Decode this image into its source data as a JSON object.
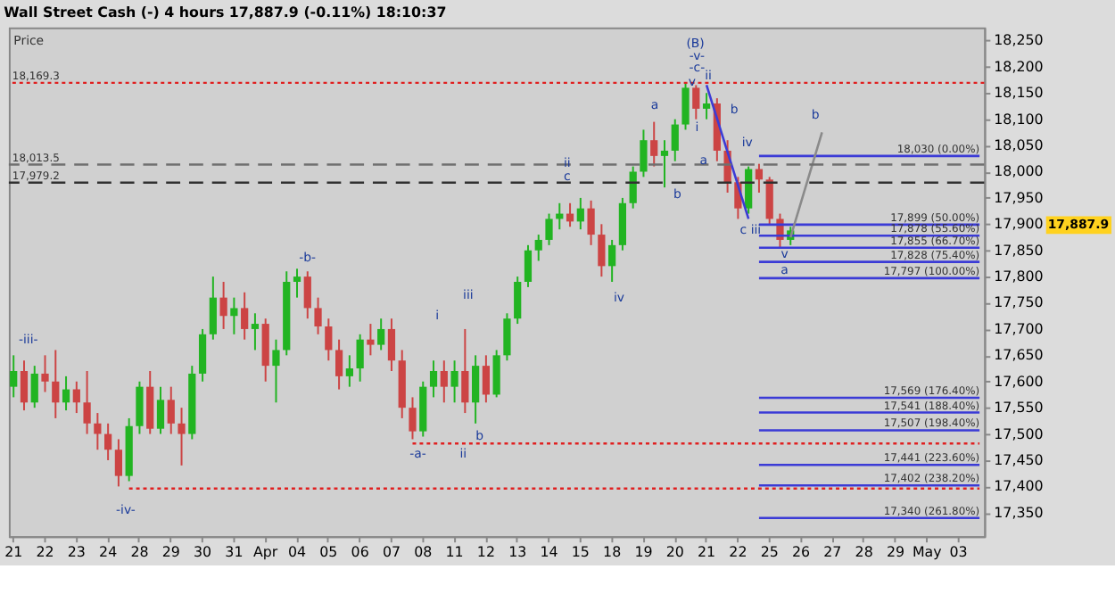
{
  "chart_data": {
    "type": "candlestick",
    "title": "Wall Street Cash (-)   4 hours   17,887.9 (-0.11%)   18:10:37",
    "categories": [
      "21",
      null,
      null,
      "22",
      null,
      null,
      "23",
      null,
      null,
      "24",
      null,
      null,
      "28",
      null,
      null,
      "29",
      null,
      null,
      "30",
      null,
      null,
      "31",
      null,
      null,
      "Apr",
      null,
      null,
      "04",
      null,
      null,
      "05",
      null,
      null,
      "06",
      null,
      null,
      "07",
      null,
      null,
      "08",
      null,
      null,
      "11",
      null,
      null,
      "12",
      null,
      null,
      "13",
      null,
      null,
      "14",
      null,
      null,
      "15",
      null,
      null,
      "18",
      null,
      null,
      "19",
      null,
      null,
      "20",
      null,
      null,
      "21",
      null,
      null,
      "22",
      null,
      null,
      "25",
      null,
      null,
      "26",
      null,
      null,
      "27",
      null,
      null,
      "28",
      null,
      null,
      "29",
      null,
      null,
      "May",
      null,
      null,
      "03",
      null,
      null
    ],
    "ohlc": [
      [
        17590,
        17650,
        17570,
        17620
      ],
      [
        17620,
        17640,
        17545,
        17560
      ],
      [
        17560,
        17630,
        17550,
        17615
      ],
      [
        17615,
        17650,
        17580,
        17600
      ],
      [
        17600,
        17660,
        17530,
        17560
      ],
      [
        17560,
        17610,
        17545,
        17585
      ],
      [
        17585,
        17600,
        17540,
        17560
      ],
      [
        17560,
        17620,
        17500,
        17520
      ],
      [
        17520,
        17540,
        17470,
        17500
      ],
      [
        17500,
        17520,
        17450,
        17470
      ],
      [
        17470,
        17490,
        17400,
        17420
      ],
      [
        17420,
        17530,
        17410,
        17515
      ],
      [
        17515,
        17600,
        17500,
        17590
      ],
      [
        17590,
        17620,
        17500,
        17510
      ],
      [
        17510,
        17590,
        17500,
        17565
      ],
      [
        17565,
        17590,
        17500,
        17520
      ],
      [
        17520,
        17550,
        17440,
        17500
      ],
      [
        17500,
        17630,
        17490,
        17615
      ],
      [
        17615,
        17700,
        17600,
        17690
      ],
      [
        17690,
        17800,
        17680,
        17760
      ],
      [
        17760,
        17790,
        17700,
        17725
      ],
      [
        17725,
        17760,
        17690,
        17740
      ],
      [
        17740,
        17770,
        17680,
        17700
      ],
      [
        17700,
        17730,
        17660,
        17710
      ],
      [
        17710,
        17720,
        17600,
        17630
      ],
      [
        17630,
        17680,
        17560,
        17660
      ],
      [
        17660,
        17810,
        17650,
        17790
      ],
      [
        17790,
        17815,
        17760,
        17800
      ],
      [
        17800,
        17810,
        17720,
        17740
      ],
      [
        17740,
        17760,
        17690,
        17705
      ],
      [
        17705,
        17720,
        17640,
        17660
      ],
      [
        17660,
        17680,
        17585,
        17610
      ],
      [
        17610,
        17650,
        17590,
        17625
      ],
      [
        17625,
        17690,
        17600,
        17680
      ],
      [
        17680,
        17710,
        17650,
        17670
      ],
      [
        17670,
        17720,
        17660,
        17700
      ],
      [
        17700,
        17720,
        17620,
        17640
      ],
      [
        17640,
        17660,
        17530,
        17550
      ],
      [
        17550,
        17570,
        17490,
        17505
      ],
      [
        17505,
        17600,
        17495,
        17590
      ],
      [
        17590,
        17640,
        17570,
        17620
      ],
      [
        17620,
        17640,
        17560,
        17590
      ],
      [
        17590,
        17640,
        17560,
        17620
      ],
      [
        17620,
        17700,
        17540,
        17560
      ],
      [
        17560,
        17650,
        17520,
        17630
      ],
      [
        17630,
        17650,
        17560,
        17575
      ],
      [
        17575,
        17660,
        17570,
        17650
      ],
      [
        17650,
        17730,
        17640,
        17720
      ],
      [
        17720,
        17800,
        17710,
        17790
      ],
      [
        17790,
        17860,
        17780,
        17850
      ],
      [
        17850,
        17880,
        17830,
        17870
      ],
      [
        17870,
        17920,
        17860,
        17910
      ],
      [
        17910,
        17940,
        17890,
        17920
      ],
      [
        17920,
        17940,
        17895,
        17905
      ],
      [
        17905,
        17950,
        17890,
        17930
      ],
      [
        17930,
        17945,
        17860,
        17880
      ],
      [
        17880,
        17900,
        17800,
        17820
      ],
      [
        17820,
        17870,
        17790,
        17860
      ],
      [
        17860,
        17950,
        17850,
        17940
      ],
      [
        17940,
        18010,
        17930,
        18000
      ],
      [
        18000,
        18080,
        17990,
        18060
      ],
      [
        18060,
        18095,
        18010,
        18030
      ],
      [
        18030,
        18060,
        17970,
        18040
      ],
      [
        18040,
        18100,
        18020,
        18090
      ],
      [
        18090,
        18170,
        18080,
        18160
      ],
      [
        18160,
        18165,
        18100,
        18120
      ],
      [
        18120,
        18150,
        18100,
        18130
      ],
      [
        18130,
        18140,
        18020,
        18040
      ],
      [
        18040,
        18060,
        17960,
        17980
      ],
      [
        17980,
        17990,
        17910,
        17930
      ],
      [
        17930,
        18010,
        17920,
        18005
      ],
      [
        18005,
        18015,
        17960,
        17985
      ],
      [
        17985,
        17990,
        17900,
        17910
      ],
      [
        17910,
        17920,
        17855,
        17870
      ],
      [
        17870,
        17895,
        17860,
        17888
      ],
      null,
      null,
      null,
      null,
      null,
      null,
      null,
      null,
      null,
      null,
      null,
      null,
      null,
      null,
      null,
      null,
      null,
      null
    ],
    "series": [
      {
        "type": "line",
        "name": "18,030 (0.00%)",
        "color": "#3b3bd6",
        "values": [
          null,
          null,
          null,
          null,
          null,
          null,
          null,
          null,
          null,
          null,
          null,
          null,
          null,
          null,
          null,
          null,
          null,
          null,
          null,
          null,
          null,
          null,
          null,
          null,
          null,
          null,
          null,
          null,
          null,
          null,
          null,
          null,
          null,
          null,
          null,
          null,
          null,
          null,
          null,
          null,
          null,
          null,
          null,
          null,
          null,
          null,
          null,
          null,
          null,
          null,
          null,
          null,
          null,
          null,
          null,
          null,
          null,
          null,
          null,
          null,
          null,
          null,
          null,
          null,
          null,
          null,
          null,
          null,
          null,
          null,
          null,
          18030,
          18030,
          18030,
          18030,
          18030,
          18030,
          18030,
          18030,
          18030,
          18030,
          18030,
          18030,
          18030,
          18030,
          18030,
          18030,
          18030,
          18030,
          18030,
          18030,
          18030,
          18030
        ]
      },
      {
        "type": "line",
        "name": "17,899 (50.00%)",
        "color": "#3b3bd6",
        "values": [
          null,
          null,
          null,
          null,
          null,
          null,
          null,
          null,
          null,
          null,
          null,
          null,
          null,
          null,
          null,
          null,
          null,
          null,
          null,
          null,
          null,
          null,
          null,
          null,
          null,
          null,
          null,
          null,
          null,
          null,
          null,
          null,
          null,
          null,
          null,
          null,
          null,
          null,
          null,
          null,
          null,
          null,
          null,
          null,
          null,
          null,
          null,
          null,
          null,
          null,
          null,
          null,
          null,
          null,
          null,
          null,
          null,
          null,
          null,
          null,
          null,
          null,
          null,
          null,
          null,
          null,
          null,
          null,
          null,
          null,
          null,
          17899,
          17899,
          17899,
          17899,
          17899,
          17899,
          17899,
          17899,
          17899,
          17899,
          17899,
          17899,
          17899,
          17899,
          17899,
          17899,
          17899,
          17899,
          17899,
          17899,
          17899,
          17899
        ]
      },
      {
        "type": "line",
        "name": "17,878 (55.60%)",
        "color": "#3b3bd6",
        "values": [
          null,
          null,
          null,
          null,
          null,
          null,
          null,
          null,
          null,
          null,
          null,
          null,
          null,
          null,
          null,
          null,
          null,
          null,
          null,
          null,
          null,
          null,
          null,
          null,
          null,
          null,
          null,
          null,
          null,
          null,
          null,
          null,
          null,
          null,
          null,
          null,
          null,
          null,
          null,
          null,
          null,
          null,
          null,
          null,
          null,
          null,
          null,
          null,
          null,
          null,
          null,
          null,
          null,
          null,
          null,
          null,
          null,
          null,
          null,
          null,
          null,
          null,
          null,
          null,
          null,
          null,
          null,
          null,
          null,
          null,
          null,
          17878,
          17878,
          17878,
          17878,
          17878,
          17878,
          17878,
          17878,
          17878,
          17878,
          17878,
          17878,
          17878,
          17878,
          17878,
          17878,
          17878,
          17878,
          17878,
          17878,
          17878,
          17878
        ]
      },
      {
        "type": "line",
        "name": "17,855 (66.70%)",
        "color": "#3b3bd6",
        "values": [
          null,
          null,
          null,
          null,
          null,
          null,
          null,
          null,
          null,
          null,
          null,
          null,
          null,
          null,
          null,
          null,
          null,
          null,
          null,
          null,
          null,
          null,
          null,
          null,
          null,
          null,
          null,
          null,
          null,
          null,
          null,
          null,
          null,
          null,
          null,
          null,
          null,
          null,
          null,
          null,
          null,
          null,
          null,
          null,
          null,
          null,
          null,
          null,
          null,
          null,
          null,
          null,
          null,
          null,
          null,
          null,
          null,
          null,
          null,
          null,
          null,
          null,
          null,
          null,
          null,
          null,
          null,
          null,
          null,
          null,
          null,
          17855,
          17855,
          17855,
          17855,
          17855,
          17855,
          17855,
          17855,
          17855,
          17855,
          17855,
          17855,
          17855,
          17855,
          17855,
          17855,
          17855,
          17855,
          17855,
          17855,
          17855,
          17855
        ]
      },
      {
        "type": "line",
        "name": "17,828 (75.40%)",
        "color": "#3b3bd6",
        "values": [
          null,
          null,
          null,
          null,
          null,
          null,
          null,
          null,
          null,
          null,
          null,
          null,
          null,
          null,
          null,
          null,
          null,
          null,
          null,
          null,
          null,
          null,
          null,
          null,
          null,
          null,
          null,
          null,
          null,
          null,
          null,
          null,
          null,
          null,
          null,
          null,
          null,
          null,
          null,
          null,
          null,
          null,
          null,
          null,
          null,
          null,
          null,
          null,
          null,
          null,
          null,
          null,
          null,
          null,
          null,
          null,
          null,
          null,
          null,
          null,
          null,
          null,
          null,
          null,
          null,
          null,
          null,
          null,
          null,
          null,
          null,
          17828,
          17828,
          17828,
          17828,
          17828,
          17828,
          17828,
          17828,
          17828,
          17828,
          17828,
          17828,
          17828,
          17828,
          17828,
          17828,
          17828,
          17828,
          17828,
          17828,
          17828,
          17828
        ]
      },
      {
        "type": "line",
        "name": "17,797 (100.00%)",
        "color": "#3b3bd6",
        "values": [
          null,
          null,
          null,
          null,
          null,
          null,
          null,
          null,
          null,
          null,
          null,
          null,
          null,
          null,
          null,
          null,
          null,
          null,
          null,
          null,
          null,
          null,
          null,
          null,
          null,
          null,
          null,
          null,
          null,
          null,
          null,
          null,
          null,
          null,
          null,
          null,
          null,
          null,
          null,
          null,
          null,
          null,
          null,
          null,
          null,
          null,
          null,
          null,
          null,
          null,
          null,
          null,
          null,
          null,
          null,
          null,
          null,
          null,
          null,
          null,
          null,
          null,
          null,
          null,
          null,
          null,
          null,
          null,
          null,
          null,
          null,
          17797,
          17797,
          17797,
          17797,
          17797,
          17797,
          17797,
          17797,
          17797,
          17797,
          17797,
          17797,
          17797,
          17797,
          17797,
          17797,
          17797,
          17797,
          17797,
          17797,
          17797,
          17797
        ]
      },
      {
        "type": "line",
        "name": "17,569 (176.40%)",
        "color": "#3b3bd6",
        "values": [
          null,
          null,
          null,
          null,
          null,
          null,
          null,
          null,
          null,
          null,
          null,
          null,
          null,
          null,
          null,
          null,
          null,
          null,
          null,
          null,
          null,
          null,
          null,
          null,
          null,
          null,
          null,
          null,
          null,
          null,
          null,
          null,
          null,
          null,
          null,
          null,
          null,
          null,
          null,
          null,
          null,
          null,
          null,
          null,
          null,
          null,
          null,
          null,
          null,
          null,
          null,
          null,
          null,
          null,
          null,
          null,
          null,
          null,
          null,
          null,
          null,
          null,
          null,
          null,
          null,
          null,
          null,
          null,
          null,
          null,
          null,
          17569,
          17569,
          17569,
          17569,
          17569,
          17569,
          17569,
          17569,
          17569,
          17569,
          17569,
          17569,
          17569,
          17569,
          17569,
          17569,
          17569,
          17569,
          17569,
          17569,
          17569,
          17569
        ]
      },
      {
        "type": "line",
        "name": "17,541 (188.40%)",
        "color": "#3b3bd6",
        "values": [
          null,
          null,
          null,
          null,
          null,
          null,
          null,
          null,
          null,
          null,
          null,
          null,
          null,
          null,
          null,
          null,
          null,
          null,
          null,
          null,
          null,
          null,
          null,
          null,
          null,
          null,
          null,
          null,
          null,
          null,
          null,
          null,
          null,
          null,
          null,
          null,
          null,
          null,
          null,
          null,
          null,
          null,
          null,
          null,
          null,
          null,
          null,
          null,
          null,
          null,
          null,
          null,
          null,
          null,
          null,
          null,
          null,
          null,
          null,
          null,
          null,
          null,
          null,
          null,
          null,
          null,
          null,
          null,
          null,
          null,
          null,
          17541,
          17541,
          17541,
          17541,
          17541,
          17541,
          17541,
          17541,
          17541,
          17541,
          17541,
          17541,
          17541,
          17541,
          17541,
          17541,
          17541,
          17541,
          17541,
          17541,
          17541,
          17541
        ]
      },
      {
        "type": "line",
        "name": "17,507 (198.40%)",
        "color": "#3b3bd6",
        "values": [
          null,
          null,
          null,
          null,
          null,
          null,
          null,
          null,
          null,
          null,
          null,
          null,
          null,
          null,
          null,
          null,
          null,
          null,
          null,
          null,
          null,
          null,
          null,
          null,
          null,
          null,
          null,
          null,
          null,
          null,
          null,
          null,
          null,
          null,
          null,
          null,
          null,
          null,
          null,
          null,
          null,
          null,
          null,
          null,
          null,
          null,
          null,
          null,
          null,
          null,
          null,
          null,
          null,
          null,
          null,
          null,
          null,
          null,
          null,
          null,
          null,
          null,
          null,
          null,
          null,
          null,
          null,
          null,
          null,
          null,
          null,
          17507,
          17507,
          17507,
          17507,
          17507,
          17507,
          17507,
          17507,
          17507,
          17507,
          17507,
          17507,
          17507,
          17507,
          17507,
          17507,
          17507,
          17507,
          17507,
          17507,
          17507,
          17507
        ]
      },
      {
        "type": "line",
        "name": "17,441 (223.60%)",
        "color": "#3b3bd6",
        "values": [
          null,
          null,
          null,
          null,
          null,
          null,
          null,
          null,
          null,
          null,
          null,
          null,
          null,
          null,
          null,
          null,
          null,
          null,
          null,
          null,
          null,
          null,
          null,
          null,
          null,
          null,
          null,
          null,
          null,
          null,
          null,
          null,
          null,
          null,
          null,
          null,
          null,
          null,
          null,
          null,
          null,
          null,
          null,
          null,
          null,
          null,
          null,
          null,
          null,
          null,
          null,
          null,
          null,
          null,
          null,
          null,
          null,
          null,
          null,
          null,
          null,
          null,
          null,
          null,
          null,
          null,
          null,
          null,
          null,
          null,
          null,
          17441,
          17441,
          17441,
          17441,
          17441,
          17441,
          17441,
          17441,
          17441,
          17441,
          17441,
          17441,
          17441,
          17441,
          17441,
          17441,
          17441,
          17441,
          17441,
          17441,
          17441,
          17441
        ]
      },
      {
        "type": "line",
        "name": "17,402 (238.20%)",
        "color": "#3b3bd6",
        "values": [
          null,
          null,
          null,
          null,
          null,
          null,
          null,
          null,
          null,
          null,
          null,
          null,
          null,
          null,
          null,
          null,
          null,
          null,
          null,
          null,
          null,
          null,
          null,
          null,
          null,
          null,
          null,
          null,
          null,
          null,
          null,
          null,
          null,
          null,
          null,
          null,
          null,
          null,
          null,
          null,
          null,
          null,
          null,
          null,
          null,
          null,
          null,
          null,
          null,
          null,
          null,
          null,
          null,
          null,
          null,
          null,
          null,
          null,
          null,
          null,
          null,
          null,
          null,
          null,
          null,
          null,
          null,
          null,
          null,
          null,
          null,
          17402,
          17402,
          17402,
          17402,
          17402,
          17402,
          17402,
          17402,
          17402,
          17402,
          17402,
          17402,
          17402,
          17402,
          17402,
          17402,
          17402,
          17402,
          17402,
          17402,
          17402,
          17402
        ]
      },
      {
        "type": "line",
        "name": "17,340 (261.80%)",
        "color": "#3b3bd6",
        "values": [
          null,
          null,
          null,
          null,
          null,
          null,
          null,
          null,
          null,
          null,
          null,
          null,
          null,
          null,
          null,
          null,
          null,
          null,
          null,
          null,
          null,
          null,
          null,
          null,
          null,
          null,
          null,
          null,
          null,
          null,
          null,
          null,
          null,
          null,
          null,
          null,
          null,
          null,
          null,
          null,
          null,
          null,
          null,
          null,
          null,
          null,
          null,
          null,
          null,
          null,
          null,
          null,
          null,
          null,
          null,
          null,
          null,
          null,
          null,
          null,
          null,
          null,
          null,
          null,
          null,
          null,
          null,
          null,
          null,
          null,
          null,
          17340,
          17340,
          17340,
          17340,
          17340,
          17340,
          17340,
          17340,
          17340,
          17340,
          17340,
          17340,
          17340,
          17340,
          17340,
          17340,
          17340,
          17340,
          17340,
          17340,
          17340,
          17340
        ]
      },
      {
        "type": "line",
        "color": "#e02020",
        "line_style": "dotted",
        "values": [
          null,
          null,
          null,
          null,
          null,
          null,
          null,
          null,
          null,
          null,
          null,
          17396,
          17396,
          17396,
          17396,
          17396,
          17396,
          17396,
          17396,
          17396,
          17396,
          17396,
          17396,
          17396,
          17396,
          17396,
          17396,
          17396,
          17396,
          17396,
          17396,
          17396,
          17396,
          17396,
          17396,
          17396,
          17396,
          17396,
          17396,
          17396,
          17396,
          17396,
          17396,
          17396,
          17396,
          17396,
          17396,
          17396,
          17396,
          17396,
          17396,
          17396,
          17396,
          17396,
          17396,
          17396,
          17396,
          17396,
          17396,
          17396,
          17396,
          17396,
          17396,
          17396,
          17396,
          17396,
          17396,
          17396,
          17396,
          17396,
          17396,
          17396,
          17396,
          17396,
          17396,
          17396,
          17396,
          17396,
          17396,
          17396,
          17396,
          17396,
          17396,
          17396,
          17396,
          17396,
          17396,
          17396,
          17396,
          17396,
          17396,
          17396,
          17396
        ]
      },
      {
        "type": "line",
        "color": "#e02020",
        "line_style": "dotted",
        "values": [
          null,
          null,
          null,
          null,
          null,
          null,
          null,
          null,
          null,
          null,
          null,
          null,
          null,
          null,
          null,
          null,
          null,
          null,
          null,
          null,
          null,
          null,
          null,
          null,
          null,
          null,
          null,
          null,
          null,
          null,
          null,
          null,
          null,
          null,
          null,
          null,
          null,
          null,
          17482,
          17482,
          17482,
          17482,
          17482,
          17482,
          17482,
          17482,
          17482,
          17482,
          17482,
          17482,
          17482,
          17482,
          17482,
          17482,
          17482,
          17482,
          17482,
          17482,
          17482,
          17482,
          17482,
          17482,
          17482,
          17482,
          17482,
          17482,
          17482,
          17482,
          17482,
          17482,
          17482,
          17482,
          17482,
          17482,
          17482,
          17482,
          17482,
          17482,
          17482,
          17482,
          17482,
          17482,
          17482,
          17482,
          17482,
          17482,
          17482,
          17482,
          17482,
          17482,
          17482,
          17482,
          17482
        ]
      },
      {
        "type": "line",
        "color": "#3b3bd6",
        "values": [
          null,
          null,
          null,
          null,
          null,
          null,
          null,
          null,
          null,
          null,
          null,
          null,
          null,
          null,
          null,
          null,
          null,
          null,
          null,
          null,
          null,
          null,
          null,
          null,
          null,
          null,
          null,
          null,
          null,
          null,
          null,
          null,
          null,
          null,
          null,
          null,
          null,
          null,
          null,
          null,
          null,
          null,
          null,
          null,
          null,
          null,
          null,
          null,
          null,
          null,
          null,
          null,
          null,
          null,
          null,
          null,
          null,
          null,
          null,
          null,
          null,
          null,
          null,
          null,
          null,
          null,
          18165,
          null,
          null,
          null,
          17910,
          null,
          null,
          null,
          null,
          null,
          null,
          null,
          null,
          null,
          null,
          null,
          null,
          null,
          null,
          null,
          null,
          null,
          null,
          null,
          null,
          null,
          null
        ]
      },
      {
        "type": "line",
        "color": "#8a8a8a",
        "values": [
          null,
          null,
          null,
          null,
          null,
          null,
          null,
          null,
          null,
          null,
          null,
          null,
          null,
          null,
          null,
          null,
          null,
          null,
          null,
          null,
          null,
          null,
          null,
          null,
          null,
          null,
          null,
          null,
          null,
          null,
          null,
          null,
          null,
          null,
          null,
          null,
          null,
          null,
          null,
          null,
          null,
          null,
          null,
          null,
          null,
          null,
          null,
          null,
          null,
          null,
          null,
          null,
          null,
          null,
          null,
          null,
          null,
          null,
          null,
          null,
          null,
          null,
          null,
          null,
          null,
          null,
          null,
          null,
          null,
          null,
          null,
          null,
          null,
          null,
          17875,
          null,
          null,
          18075,
          null,
          null,
          null,
          null,
          null,
          null,
          null,
          null,
          null,
          null,
          null,
          null,
          null,
          null,
          null
        ]
      }
    ],
    "ref_lines": [
      {
        "axis": "y",
        "value": 18169.3,
        "label": "18,169.3",
        "color": "#e02020",
        "line_style": "dotted"
      },
      {
        "axis": "y",
        "value": 18013.5,
        "label": "18,013.5",
        "color": "#707070",
        "line_style": "dashed"
      },
      {
        "axis": "y",
        "value": 17979.2,
        "label": "17,979.2",
        "color": "#303030",
        "line_style": "dashed"
      }
    ],
    "annotations": [
      "Price",
      "17,887.9",
      "-iii-",
      "-iv-",
      "-b-",
      "-a-",
      "(B)",
      "-v-",
      "-c-",
      "i",
      "iii",
      "b",
      "ii",
      "iv",
      "ii",
      "c",
      "a",
      "b",
      "v",
      "i",
      "ii",
      "b",
      "a",
      "iv",
      "c iii",
      "v",
      "a",
      "b"
    ],
    "ylim": [
      17305,
      18275
    ],
    "yticks": [
      {
        "value": 17350,
        "label": "17,350"
      },
      {
        "value": 17400,
        "label": "17,400"
      },
      {
        "value": 17450,
        "label": "17,450"
      },
      {
        "value": 17500,
        "label": "17,500"
      },
      {
        "value": 17550,
        "label": "17,550"
      },
      {
        "value": 17600,
        "label": "17,600"
      },
      {
        "value": 17650,
        "label": "17,650"
      },
      {
        "value": 17700,
        "label": "17,700"
      },
      {
        "value": 17750,
        "label": "17,750"
      },
      {
        "value": 17800,
        "label": "17,800"
      },
      {
        "value": 17850,
        "label": "17,850"
      },
      {
        "value": 17900,
        "label": "17,900"
      },
      {
        "value": 17950,
        "label": "17,950"
      },
      {
        "value": 18000,
        "label": "18,000"
      },
      {
        "value": 18050,
        "label": "18,050"
      },
      {
        "value": 18100,
        "label": "18,100"
      },
      {
        "value": 18150,
        "label": "18,150"
      },
      {
        "value": 18200,
        "label": "18,200"
      },
      {
        "value": 18250,
        "label": "18,250"
      }
    ]
  }
}
